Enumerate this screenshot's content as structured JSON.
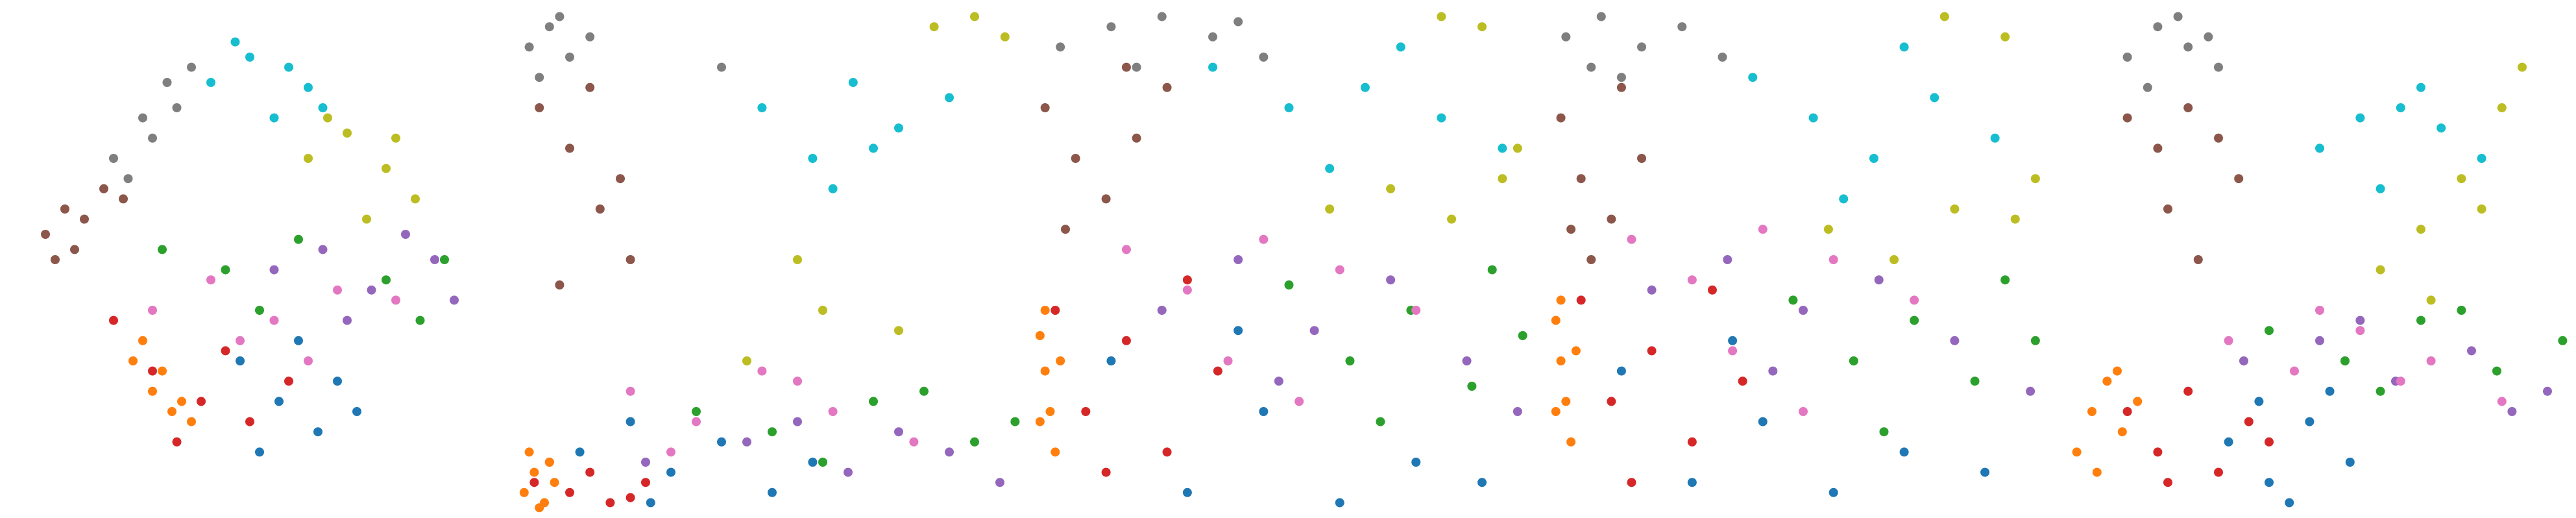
{
  "chart_data": [
    {
      "type": "scatter",
      "xlim": [
        0,
        100
      ],
      "ylim": [
        0,
        100
      ],
      "series": [
        {
          "color": "#7f7f7f",
          "x": [
            22,
            28,
            33,
            38,
            30,
            25,
            35
          ],
          "values": [
            70,
            78,
            85,
            88,
            74,
            66,
            80
          ]
        },
        {
          "color": "#8c564b",
          "x": [
            8,
            12,
            16,
            20,
            14,
            24,
            10
          ],
          "values": [
            55,
            60,
            58,
            64,
            52,
            62,
            50
          ]
        },
        {
          "color": "#17becf",
          "x": [
            42,
            50,
            58,
            65,
            55,
            47,
            62
          ],
          "values": [
            85,
            90,
            88,
            80,
            78,
            93,
            84
          ]
        },
        {
          "color": "#bcbd22",
          "x": [
            62,
            70,
            78,
            84,
            74,
            66,
            80
          ],
          "values": [
            70,
            75,
            68,
            62,
            58,
            78,
            74
          ]
        },
        {
          "color": "#9467bd",
          "x": [
            55,
            65,
            75,
            88,
            92,
            70,
            82
          ],
          "values": [
            48,
            52,
            44,
            50,
            42,
            38,
            55
          ]
        },
        {
          "color": "#2ca02c",
          "x": [
            32,
            45,
            60,
            78,
            90,
            52,
            85
          ],
          "values": [
            52,
            48,
            54,
            46,
            50,
            40,
            38
          ]
        },
        {
          "color": "#e377c2",
          "x": [
            30,
            42,
            55,
            68,
            80,
            48,
            62
          ],
          "values": [
            40,
            46,
            38,
            44,
            42,
            34,
            30
          ]
        },
        {
          "color": "#d62728",
          "x": [
            22,
            30,
            40,
            50,
            58,
            35,
            45
          ],
          "values": [
            38,
            28,
            22,
            18,
            26,
            14,
            32
          ]
        },
        {
          "color": "#ff7f0e",
          "x": [
            26,
            30,
            34,
            38,
            32,
            28,
            36
          ],
          "values": [
            30,
            24,
            20,
            18,
            28,
            34,
            22
          ]
        },
        {
          "color": "#1f77b4",
          "x": [
            48,
            56,
            64,
            72,
            60,
            52,
            68
          ],
          "values": [
            30,
            22,
            16,
            20,
            34,
            12,
            26
          ]
        }
      ]
    },
    {
      "type": "scatter",
      "xlim": [
        0,
        100
      ],
      "ylim": [
        0,
        100
      ],
      "series": [
        {
          "color": "#7f7f7f",
          "x": [
            2,
            6,
            10,
            14,
            4,
            8,
            40
          ],
          "values": [
            92,
            96,
            90,
            94,
            86,
            98,
            88
          ]
        },
        {
          "color": "#8c564b",
          "x": [
            4,
            10,
            16,
            22,
            8,
            14,
            20
          ],
          "values": [
            80,
            72,
            60,
            50,
            45,
            84,
            66
          ]
        },
        {
          "color": "#17becf",
          "x": [
            48,
            58,
            66,
            75,
            85,
            62,
            70
          ],
          "values": [
            80,
            70,
            85,
            76,
            82,
            64,
            72
          ]
        },
        {
          "color": "#bcbd22",
          "x": [
            82,
            90,
            96,
            45,
            60,
            75,
            55
          ],
          "values": [
            96,
            98,
            94,
            30,
            40,
            36,
            50
          ]
        },
        {
          "color": "#9467bd",
          "x": [
            25,
            45,
            65,
            85,
            95,
            55,
            75
          ],
          "values": [
            10,
            14,
            8,
            12,
            6,
            18,
            16
          ]
        },
        {
          "color": "#2ca02c",
          "x": [
            35,
            50,
            70,
            90,
            98,
            60,
            80
          ],
          "values": [
            20,
            16,
            22,
            14,
            18,
            10,
            24
          ]
        },
        {
          "color": "#e377c2",
          "x": [
            22,
            35,
            48,
            62,
            78,
            30,
            55
          ],
          "values": [
            24,
            18,
            28,
            20,
            14,
            12,
            26
          ]
        },
        {
          "color": "#d62728",
          "x": [
            3,
            10,
            18,
            25,
            14,
            6,
            22
          ],
          "values": [
            6,
            4,
            2,
            6,
            8,
            10,
            3
          ]
        },
        {
          "color": "#ff7f0e",
          "x": [
            1,
            3,
            5,
            7,
            2,
            4,
            6
          ],
          "values": [
            4,
            8,
            2,
            6,
            12,
            1,
            10
          ]
        },
        {
          "color": "#1f77b4",
          "x": [
            12,
            22,
            30,
            40,
            50,
            26,
            58
          ],
          "values": [
            12,
            18,
            8,
            14,
            4,
            2,
            10
          ]
        }
      ]
    },
    {
      "type": "scatter",
      "xlim": [
        0,
        100
      ],
      "ylim": [
        0,
        100
      ],
      "series": [
        {
          "color": "#7f7f7f",
          "x": [
            5,
            15,
            25,
            35,
            45,
            20,
            40
          ],
          "values": [
            92,
            96,
            98,
            94,
            90,
            88,
            97
          ]
        },
        {
          "color": "#8c564b",
          "x": [
            2,
            8,
            14,
            20,
            26,
            6,
            18
          ],
          "values": [
            80,
            70,
            62,
            74,
            84,
            56,
            88
          ]
        },
        {
          "color": "#17becf",
          "x": [
            35,
            50,
            65,
            80,
            92,
            58,
            72
          ],
          "values": [
            88,
            80,
            84,
            78,
            72,
            68,
            92
          ]
        },
        {
          "color": "#bcbd22",
          "x": [
            58,
            70,
            82,
            92,
            80,
            88,
            95
          ],
          "values": [
            60,
            64,
            58,
            66,
            98,
            96,
            72
          ]
        },
        {
          "color": "#9467bd",
          "x": [
            25,
            40,
            55,
            70,
            85,
            95,
            48
          ],
          "values": [
            40,
            50,
            36,
            46,
            30,
            20,
            26
          ]
        },
        {
          "color": "#2ca02c",
          "x": [
            50,
            62,
            74,
            86,
            96,
            68,
            90
          ],
          "values": [
            45,
            30,
            40,
            25,
            35,
            18,
            48
          ]
        },
        {
          "color": "#e377c2",
          "x": [
            18,
            30,
            45,
            60,
            75,
            38,
            52
          ],
          "values": [
            52,
            44,
            54,
            48,
            40,
            30,
            22
          ]
        },
        {
          "color": "#d62728",
          "x": [
            4,
            10,
            18,
            26,
            36,
            14,
            30
          ],
          "values": [
            40,
            20,
            34,
            12,
            28,
            8,
            46
          ]
        },
        {
          "color": "#ff7f0e",
          "x": [
            1,
            2,
            3,
            4,
            2,
            1,
            5
          ],
          "values": [
            35,
            28,
            20,
            12,
            40,
            18,
            30
          ]
        },
        {
          "color": "#1f77b4",
          "x": [
            15,
            30,
            45,
            60,
            75,
            40,
            88
          ],
          "values": [
            30,
            4,
            20,
            2,
            10,
            36,
            6
          ]
        }
      ]
    },
    {
      "type": "scatter",
      "xlim": [
        0,
        100
      ],
      "ylim": [
        0,
        100
      ],
      "series": [
        {
          "color": "#7f7f7f",
          "x": [
            3,
            10,
            18,
            26,
            34,
            14,
            8
          ],
          "values": [
            94,
            98,
            92,
            96,
            90,
            86,
            88
          ]
        },
        {
          "color": "#8c564b",
          "x": [
            2,
            6,
            12,
            18,
            8,
            14,
            4
          ],
          "values": [
            78,
            66,
            58,
            70,
            50,
            84,
            56
          ]
        },
        {
          "color": "#17becf",
          "x": [
            40,
            52,
            64,
            76,
            88,
            58,
            70
          ],
          "values": [
            86,
            78,
            70,
            82,
            74,
            62,
            92
          ]
        },
        {
          "color": "#bcbd22",
          "x": [
            55,
            68,
            80,
            92,
            78,
            90,
            96
          ],
          "values": [
            56,
            50,
            60,
            58,
            98,
            94,
            66
          ]
        },
        {
          "color": "#9467bd",
          "x": [
            20,
            35,
            50,
            65,
            80,
            95,
            44
          ],
          "values": [
            44,
            50,
            40,
            46,
            34,
            24,
            28
          ]
        },
        {
          "color": "#2ca02c",
          "x": [
            48,
            60,
            72,
            84,
            96,
            66,
            90
          ],
          "values": [
            42,
            30,
            38,
            26,
            34,
            16,
            46
          ]
        },
        {
          "color": "#e377c2",
          "x": [
            16,
            28,
            42,
            56,
            72,
            36,
            50
          ],
          "values": [
            54,
            46,
            56,
            50,
            42,
            32,
            20
          ]
        },
        {
          "color": "#d62728",
          "x": [
            6,
            12,
            20,
            28,
            38,
            16,
            32
          ],
          "values": [
            42,
            22,
            32,
            14,
            26,
            6,
            44
          ]
        },
        {
          "color": "#ff7f0e",
          "x": [
            1,
            2,
            3,
            4,
            2,
            1,
            5
          ],
          "values": [
            38,
            30,
            22,
            14,
            42,
            20,
            32
          ]
        },
        {
          "color": "#1f77b4",
          "x": [
            14,
            28,
            42,
            56,
            70,
            36,
            86
          ],
          "values": [
            28,
            6,
            18,
            4,
            12,
            34,
            8
          ]
        }
      ]
    },
    {
      "type": "scatter",
      "xlim": [
        0,
        100
      ],
      "ylim": [
        0,
        100
      ],
      "series": [
        {
          "color": "#7f7f7f",
          "x": [
            12,
            18,
            24,
            30,
            16,
            22,
            28
          ],
          "values": [
            90,
            96,
            92,
            88,
            84,
            98,
            94
          ]
        },
        {
          "color": "#8c564b",
          "x": [
            12,
            18,
            24,
            30,
            20,
            26,
            34
          ],
          "values": [
            78,
            72,
            80,
            74,
            60,
            50,
            66
          ]
        },
        {
          "color": "#17becf",
          "x": [
            50,
            58,
            66,
            74,
            82,
            62,
            70
          ],
          "values": [
            72,
            78,
            80,
            76,
            70,
            64,
            84
          ]
        },
        {
          "color": "#bcbd22",
          "x": [
            62,
            70,
            78,
            86,
            90,
            72,
            82
          ],
          "values": [
            48,
            56,
            66,
            80,
            88,
            42,
            60
          ]
        },
        {
          "color": "#9467bd",
          "x": [
            35,
            50,
            65,
            80,
            95,
            58,
            88
          ],
          "values": [
            30,
            34,
            26,
            32,
            24,
            38,
            20
          ]
        },
        {
          "color": "#2ca02c",
          "x": [
            40,
            55,
            70,
            85,
            98,
            62,
            78
          ],
          "values": [
            36,
            30,
            38,
            28,
            34,
            24,
            40
          ]
        },
        {
          "color": "#e377c2",
          "x": [
            32,
            45,
            58,
            72,
            86,
            50,
            66
          ],
          "values": [
            34,
            28,
            36,
            30,
            22,
            40,
            26
          ]
        },
        {
          "color": "#d62728",
          "x": [
            12,
            18,
            24,
            30,
            36,
            20,
            40
          ],
          "values": [
            20,
            12,
            24,
            8,
            18,
            6,
            14
          ]
        },
        {
          "color": "#ff7f0e",
          "x": [
            2,
            5,
            8,
            11,
            14,
            6,
            10
          ],
          "values": [
            12,
            20,
            26,
            16,
            22,
            8,
            28
          ]
        },
        {
          "color": "#1f77b4",
          "x": [
            32,
            40,
            48,
            56,
            44,
            52,
            38
          ],
          "values": [
            14,
            6,
            18,
            10,
            2,
            24,
            22
          ]
        }
      ]
    }
  ]
}
